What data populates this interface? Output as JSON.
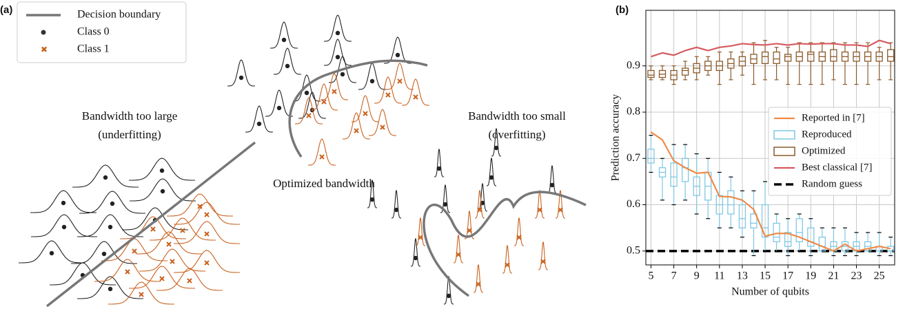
{
  "panel_a": {
    "label": "(a)",
    "legend": [
      "Decision boundary",
      "Class 0",
      "Class 1"
    ],
    "annotations": [
      "Bandwidth too large",
      "(underfitting)",
      "Optimized bandwidth",
      "Bandwidth too small",
      "(overfitting)"
    ]
  },
  "chart_data": {
    "type": "box",
    "panel_label": "(b)",
    "xlabel": "Number of qubits",
    "ylabel": "Prediction accuracy",
    "xlim": [
      4.55,
      26.35
    ],
    "ylim": [
      0.47,
      1.02
    ],
    "xticks": [
      5,
      7,
      9,
      11,
      13,
      15,
      17,
      19,
      21,
      23,
      25
    ],
    "yticks": [
      0.5,
      0.6,
      0.7,
      0.8,
      0.9
    ],
    "grid": true,
    "legend": "center right",
    "x": [
      5,
      6,
      7,
      8,
      9,
      10,
      11,
      12,
      13,
      14,
      15,
      16,
      17,
      18,
      19,
      20,
      21,
      22,
      23,
      24,
      25,
      26
    ],
    "series": [
      {
        "name": "Reported in [7]",
        "kind": "line",
        "color": "#ef8a47",
        "values": [
          0.757,
          0.74,
          0.695,
          0.68,
          0.668,
          0.67,
          0.618,
          0.617,
          0.61,
          0.59,
          0.532,
          0.538,
          0.538,
          0.53,
          0.52,
          0.51,
          0.5,
          0.515,
          0.5,
          0.505,
          0.51,
          0.505
        ]
      },
      {
        "name": "Reproduced",
        "kind": "box",
        "color": "#7ec8e3",
        "whislo": [
          0.67,
          0.61,
          0.6,
          0.61,
          0.58,
          0.57,
          0.55,
          0.55,
          0.53,
          0.49,
          0.5,
          0.5,
          0.49,
          0.5,
          0.49,
          0.5,
          0.49,
          0.49,
          0.49,
          0.5,
          0.49,
          0.49
        ],
        "q1": [
          0.69,
          0.66,
          0.64,
          0.65,
          0.62,
          0.61,
          0.58,
          0.58,
          0.55,
          0.55,
          0.53,
          0.52,
          0.51,
          0.52,
          0.51,
          0.5,
          0.5,
          0.5,
          0.5,
          0.5,
          0.5,
          0.5
        ],
        "median": [
          0.7,
          0.67,
          0.66,
          0.68,
          0.64,
          0.64,
          0.6,
          0.6,
          0.57,
          0.56,
          0.55,
          0.53,
          0.52,
          0.54,
          0.52,
          0.51,
          0.51,
          0.51,
          0.51,
          0.51,
          0.51,
          0.5
        ],
        "q3": [
          0.72,
          0.68,
          0.69,
          0.7,
          0.66,
          0.67,
          0.62,
          0.63,
          0.6,
          0.58,
          0.6,
          0.56,
          0.54,
          0.57,
          0.55,
          0.53,
          0.52,
          0.52,
          0.52,
          0.52,
          0.51,
          0.51
        ],
        "whishi": [
          0.75,
          0.7,
          0.73,
          0.73,
          0.71,
          0.7,
          0.67,
          0.66,
          0.63,
          0.63,
          0.65,
          0.58,
          0.57,
          0.58,
          0.57,
          0.55,
          0.55,
          0.55,
          0.54,
          0.54,
          0.54,
          0.53
        ]
      },
      {
        "name": "Optimized",
        "kind": "box",
        "color": "#8b5a2b",
        "whislo": [
          0.87,
          0.87,
          0.86,
          0.87,
          0.87,
          0.88,
          0.86,
          0.87,
          0.88,
          0.86,
          0.87,
          0.87,
          0.86,
          0.86,
          0.86,
          0.86,
          0.87,
          0.86,
          0.86,
          0.86,
          0.87,
          0.87
        ],
        "q1": [
          0.875,
          0.875,
          0.87,
          0.88,
          0.885,
          0.89,
          0.89,
          0.895,
          0.9,
          0.905,
          0.905,
          0.905,
          0.91,
          0.91,
          0.91,
          0.91,
          0.91,
          0.91,
          0.91,
          0.91,
          0.91,
          0.91
        ],
        "median": [
          0.88,
          0.882,
          0.88,
          0.89,
          0.895,
          0.9,
          0.9,
          0.905,
          0.91,
          0.915,
          0.92,
          0.915,
          0.92,
          0.92,
          0.925,
          0.92,
          0.92,
          0.92,
          0.92,
          0.92,
          0.92,
          0.92
        ],
        "q3": [
          0.89,
          0.89,
          0.89,
          0.895,
          0.905,
          0.91,
          0.91,
          0.915,
          0.92,
          0.925,
          0.93,
          0.93,
          0.925,
          0.93,
          0.93,
          0.93,
          0.935,
          0.93,
          0.93,
          0.93,
          0.93,
          0.935
        ],
        "whishi": [
          0.9,
          0.9,
          0.9,
          0.91,
          0.92,
          0.92,
          0.93,
          0.93,
          0.93,
          0.95,
          0.955,
          0.94,
          0.94,
          0.95,
          0.95,
          0.95,
          0.95,
          0.95,
          0.95,
          0.95,
          0.94,
          0.95
        ]
      },
      {
        "name": "Best classical [7]",
        "kind": "line",
        "color": "#d65a5f",
        "values": [
          0.92,
          0.928,
          0.923,
          0.933,
          0.94,
          0.933,
          0.94,
          0.943,
          0.948,
          0.946,
          0.945,
          0.948,
          0.945,
          0.948,
          0.947,
          0.948,
          0.948,
          0.945,
          0.945,
          0.942,
          0.955,
          0.948
        ]
      },
      {
        "name": "Random guess",
        "kind": "hline",
        "color": "#000000",
        "value": 0.5
      }
    ]
  }
}
